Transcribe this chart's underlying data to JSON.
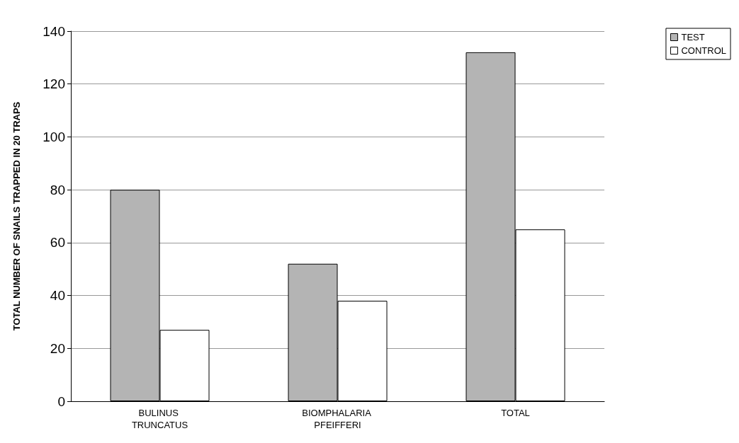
{
  "chart_data": {
    "type": "bar",
    "ylabel": "TOTAL NUMBER OF SNAILS TRAPPED IN 20 TRAPS",
    "categories": [
      "BULINUS TRUNCATUS",
      "BIOMPHALARIA PFEIFFERI",
      "TOTAL"
    ],
    "series": [
      {
        "name": "TEST",
        "color": "#b4b4b4",
        "values": [
          80,
          52,
          132
        ]
      },
      {
        "name": "CONTROL",
        "color": "#ffffff",
        "values": [
          27,
          38,
          65
        ]
      }
    ],
    "ylim": [
      0,
      140
    ],
    "yticks": [
      0,
      20,
      40,
      60,
      80,
      100,
      120,
      140
    ],
    "grid": "y",
    "legend": "top right"
  }
}
